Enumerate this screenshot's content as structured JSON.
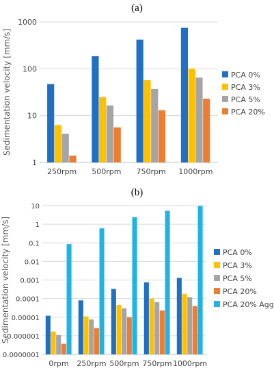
{
  "panels": [
    {
      "label": "(a)"
    },
    {
      "label": "(b)"
    }
  ],
  "chart_data": [
    {
      "type": "bar",
      "ylabel": "Sedimentation velocity [mm/s]",
      "xlabel": "",
      "yscale": "log",
      "ylim": [
        1,
        1000
      ],
      "yticks": [
        1,
        10,
        100,
        1000
      ],
      "ytick_labels": [
        "1",
        "10",
        "100",
        "1000"
      ],
      "grid": "horizontal",
      "legend_position": "right",
      "categories": [
        "250rpm",
        "500rpm",
        "750rpm",
        "1000rpm"
      ],
      "series": [
        {
          "name": "PCA 0%",
          "color": "#1f6fc5",
          "values": [
            47,
            185,
            420,
            750
          ]
        },
        {
          "name": "PCA 3%",
          "color": "#ffc000",
          "values": [
            6.3,
            25,
            57,
            100
          ]
        },
        {
          "name": "PCA 5%",
          "color": "#a5a5a5",
          "values": [
            4.1,
            16.5,
            37,
            65
          ]
        },
        {
          "name": "PCA 20%",
          "color": "#ed7d31",
          "values": [
            1.4,
            5.6,
            13,
            23
          ]
        }
      ]
    },
    {
      "type": "bar",
      "ylabel": "Sedimentation velocity [mm/s]",
      "xlabel": "",
      "yscale": "log",
      "ylim": [
        1e-07,
        10
      ],
      "yticks": [
        1e-07,
        1e-06,
        1e-05,
        0.0001,
        0.001,
        0.01,
        0.1,
        1,
        10
      ],
      "ytick_labels": [
        "0.0000001",
        "0.000001",
        "0.00001",
        "0.0001",
        "0.001",
        "0.01",
        "0.1",
        "1",
        "10"
      ],
      "grid": "horizontal",
      "legend_position": "right",
      "categories": [
        "0rpm",
        "250rpm",
        "500rpm",
        "750rpm",
        "1000rpm"
      ],
      "series": [
        {
          "name": "PCA 0%",
          "color": "#1f6fc5",
          "values": [
            1.2e-05,
            8e-05,
            0.00033,
            0.00075,
            0.0013
          ]
        },
        {
          "name": "PCA 3%",
          "color": "#ffc000",
          "values": [
            1.7e-06,
            1.1e-05,
            4.5e-05,
            0.0001,
            0.00018
          ]
        },
        {
          "name": "PCA 5%",
          "color": "#a5a5a5",
          "values": [
            1.1e-06,
            7.5e-06,
            3e-05,
            6.5e-05,
            0.00012
          ]
        },
        {
          "name": "PCA 20%",
          "color": "#ed7d31",
          "values": [
            3.7e-07,
            2.6e-06,
            1e-05,
            2.3e-05,
            4e-05
          ]
        },
        {
          "name": "PCA 20% Agg",
          "color": "#20b4e6",
          "values": [
            0.085,
            0.6,
            2.4,
            5.3,
            9.5
          ]
        }
      ]
    }
  ]
}
